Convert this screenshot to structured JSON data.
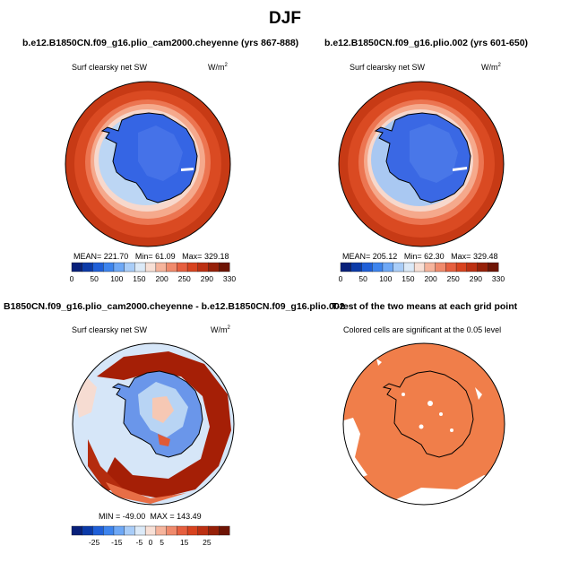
{
  "header": {
    "title": "DJF"
  },
  "panels": [
    {
      "title": "b.e12.B1850CN.f09_g16.plio_cam2000.cheyenne (yrs 867-888)",
      "variable": "Surf clearsky net SW",
      "units": "W/m",
      "units_sup": "2",
      "stats": {
        "mean_label": "MEAN=",
        "mean": "221.70",
        "min_label": "Min=",
        "min": "61.09",
        "max_label": "Max=",
        "max": "329.18"
      }
    },
    {
      "title": "b.e12.B1850CN.f09_g16.plio.002 (yrs 601-650)",
      "variable": "Surf clearsky net SW",
      "units": "W/m",
      "units_sup": "2",
      "stats": {
        "mean_label": "MEAN=",
        "mean": "205.12",
        "min_label": "Min=",
        "min": "62.30",
        "max_label": "Max=",
        "max": "329.48"
      }
    },
    {
      "title": "B1850CN.f09_g16.plio_cam2000.cheyenne - b.e12.B1850CN.f09_g16.plio.002",
      "variable": "Surf clearsky net SW",
      "units": "W/m",
      "units_sup": "2",
      "stats": {
        "min_label": "MIN =",
        "min": "-49.00",
        "max_label": "MAX =",
        "max": "143.49"
      }
    },
    {
      "title": "T-test of the two means at each grid point",
      "note": "Colored cells are significant at the 0.05 level"
    }
  ],
  "chart_data": [
    {
      "type": "heatmap",
      "title": "b.e12.B1850CN.f09_g16.plio_cam2000.cheyenne (yrs 867-888)",
      "colorbar_ticks": [
        0,
        50,
        100,
        150,
        200,
        250,
        290,
        330
      ],
      "colorbar_tick_labels": [
        "0",
        "50",
        "100",
        "150",
        "200",
        "250",
        "290",
        "330"
      ],
      "colorbar_levels": [
        0,
        25,
        50,
        75,
        100,
        125,
        150,
        175,
        200,
        225,
        250,
        270,
        290,
        310,
        330
      ],
      "colorbar_colors": [
        "#08207a",
        "#0b3aa8",
        "#1f5fd8",
        "#3d84ee",
        "#6ea8f6",
        "#a9cdf8",
        "#dceaf8",
        "#f8e0d6",
        "#f6b49c",
        "#f08a6c",
        "#e65f3f",
        "#d8431f",
        "#bc3012",
        "#962008",
        "#6e1405"
      ],
      "mean": 221.7,
      "min": 61.09,
      "max": 329.18
    },
    {
      "type": "heatmap",
      "title": "b.e12.B1850CN.f09_g16.plio.002 (yrs 601-650)",
      "colorbar_ticks": [
        0,
        50,
        100,
        150,
        200,
        250,
        290,
        330
      ],
      "colorbar_tick_labels": [
        "0",
        "50",
        "100",
        "150",
        "200",
        "250",
        "290",
        "330"
      ],
      "colorbar_levels": [
        0,
        25,
        50,
        75,
        100,
        125,
        150,
        175,
        200,
        225,
        250,
        270,
        290,
        310,
        330
      ],
      "colorbar_colors": [
        "#08207a",
        "#0b3aa8",
        "#1f5fd8",
        "#3d84ee",
        "#6ea8f6",
        "#a9cdf8",
        "#dceaf8",
        "#f8e0d6",
        "#f6b49c",
        "#f08a6c",
        "#e65f3f",
        "#d8431f",
        "#bc3012",
        "#962008",
        "#6e1405"
      ],
      "mean": 205.12,
      "min": 62.3,
      "max": 329.48
    },
    {
      "type": "heatmap",
      "title": "B1850CN.f09_g16.plio_cam2000.cheyenne - b.e12.B1850CN.f09_g16.plio.002",
      "colorbar_ticks": [
        -25,
        -15,
        -5,
        0,
        5,
        15,
        25
      ],
      "colorbar_tick_labels": [
        "-25",
        "-15",
        "-5",
        "0",
        "5",
        "15",
        "25"
      ],
      "colorbar_levels": [
        -35,
        -30,
        -25,
        -20,
        -15,
        -10,
        -5,
        0,
        5,
        10,
        15,
        20,
        25,
        30,
        35
      ],
      "colorbar_colors": [
        "#08207a",
        "#0b3aa8",
        "#1f5fd8",
        "#3d84ee",
        "#6ea8f6",
        "#a9cdf8",
        "#dceaf8",
        "#f8e0d6",
        "#f6b49c",
        "#f08a6c",
        "#e65f3f",
        "#d8431f",
        "#bc3012",
        "#962008",
        "#6e1405"
      ],
      "min": -49.0,
      "max": 143.49
    },
    {
      "type": "heatmap",
      "title": "T-test of the two means at each grid point",
      "significant_color": "#f07e4a"
    }
  ]
}
